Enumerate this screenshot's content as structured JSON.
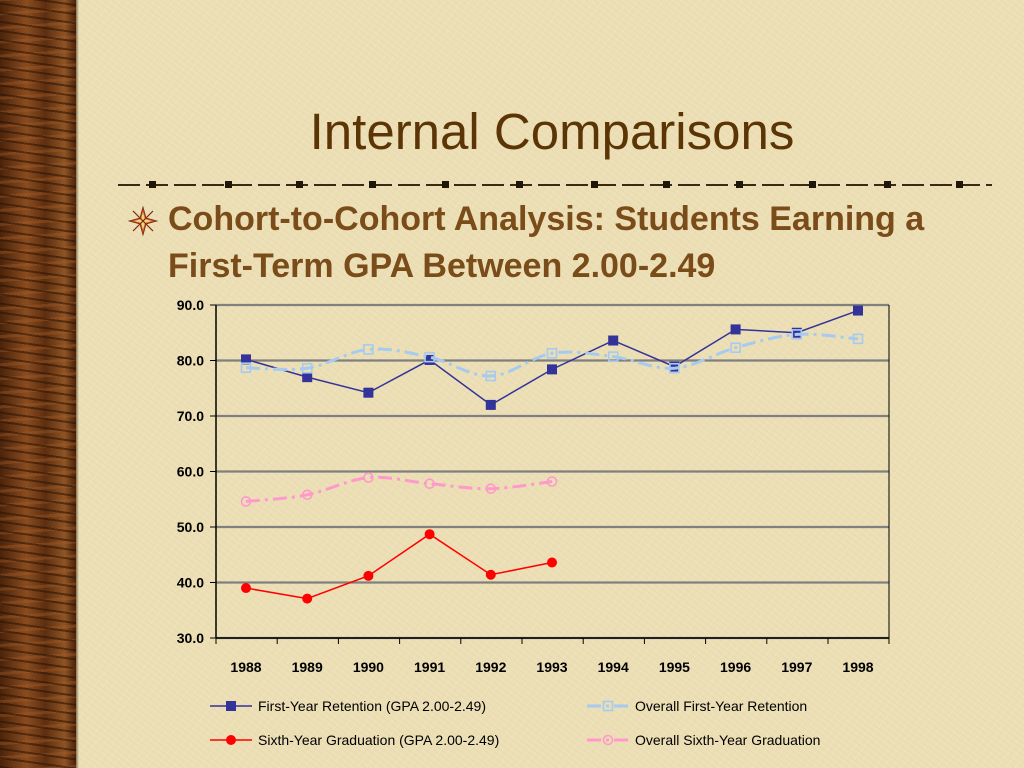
{
  "slide": {
    "title": "Internal Comparisons",
    "bullet": "Cohort-to-Cohort Analysis: Students Earning a First-Term GPA Between 2.00-2.49",
    "bullet_icon": "compass-star-icon",
    "colors": {
      "background": "#ECDFB5",
      "title": "#5C3506",
      "bullet": "#7A4C1A",
      "wood": "#6b3a17"
    }
  },
  "chart_data": {
    "type": "line",
    "categories": [
      "1988",
      "1989",
      "1990",
      "1991",
      "1992",
      "1993",
      "1994",
      "1995",
      "1996",
      "1997",
      "1998"
    ],
    "ylim": [
      30.0,
      90.0
    ],
    "yticks": [
      "90.0",
      "80.0",
      "70.0",
      "60.0",
      "50.0",
      "40.0",
      "30.0"
    ],
    "xlabel": "",
    "ylabel": "",
    "grid": true,
    "legend_position": "bottom",
    "series": [
      {
        "name": "First-Year Retention (GPA 2.00-2.49)",
        "values": [
          80.2,
          77.0,
          74.2,
          80.1,
          72.0,
          78.4,
          83.6,
          78.9,
          85.6,
          85.0,
          89.0
        ],
        "color": "#333399",
        "marker": "square",
        "dash": "solid"
      },
      {
        "name": "Overall First-Year Retention",
        "values": [
          78.7,
          78.6,
          82.0,
          80.6,
          77.2,
          81.3,
          80.7,
          78.6,
          82.3,
          84.7,
          83.9
        ],
        "color": "#A6CAF0",
        "marker": "open-square",
        "dash": "dashdot"
      },
      {
        "name": "Sixth-Year Graduation (GPA 2.00-2.49)",
        "values": [
          39.0,
          37.1,
          41.2,
          48.7,
          41.4,
          43.6,
          null,
          null,
          null,
          null,
          null
        ],
        "color": "#FF0000",
        "marker": "circle",
        "dash": "solid"
      },
      {
        "name": "Overall Sixth-Year Graduation",
        "values": [
          54.6,
          55.8,
          58.9,
          57.8,
          56.9,
          58.2,
          null,
          null,
          null,
          null,
          null
        ],
        "color": "#FF99CC",
        "marker": "open-circle",
        "dash": "dashdot"
      }
    ]
  }
}
